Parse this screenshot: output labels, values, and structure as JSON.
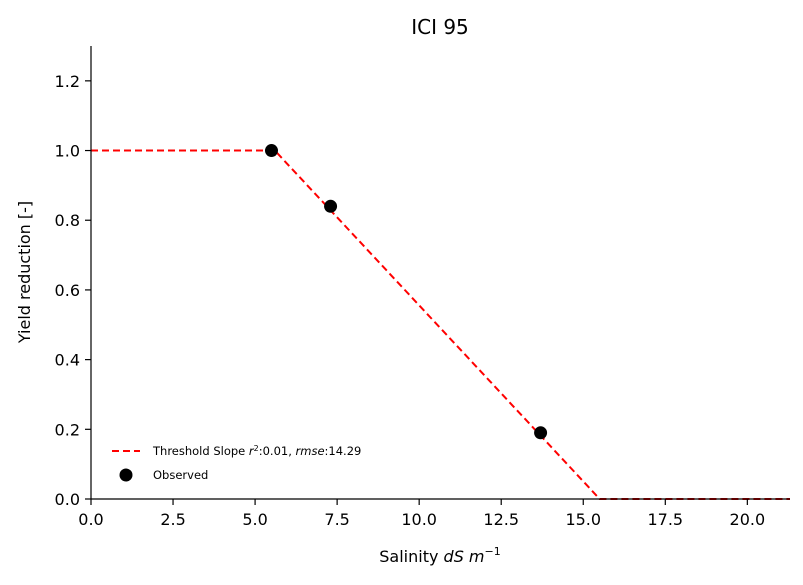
{
  "chart_data": {
    "type": "line",
    "title": "ICI 95",
    "xlabel": {
      "prefix": "Salinity ",
      "unit": "dS m",
      "exponent": "−1"
    },
    "ylabel": "Yield reduction [-]",
    "xlim": [
      0,
      21.3
    ],
    "ylim": [
      0,
      1.3
    ],
    "xticks": [
      0.0,
      2.5,
      5.0,
      7.5,
      10.0,
      12.5,
      15.0,
      17.5,
      20.0
    ],
    "xtick_labels": [
      "0.0",
      "2.5",
      "5.0",
      "7.5",
      "10.0",
      "12.5",
      "15.0",
      "17.5",
      "20.0"
    ],
    "yticks": [
      0.0,
      0.2,
      0.4,
      0.6,
      0.8,
      1.0,
      1.2
    ],
    "ytick_labels": [
      "0.0",
      "0.2",
      "0.4",
      "0.6",
      "0.8",
      "1.0",
      "1.2"
    ],
    "grid": false,
    "legend_position": "lower-left",
    "series": [
      {
        "name": "Threshold Slope r²:0.01, rmse:14.29",
        "kind": "line",
        "style": "dashed",
        "color": "#ff0000",
        "x": [
          0.0,
          5.6,
          15.5,
          21.3
        ],
        "y": [
          1.0,
          1.0,
          0.0,
          0.0
        ]
      },
      {
        "name": "Observed",
        "kind": "scatter",
        "color": "#000000",
        "x": [
          5.5,
          7.3,
          13.7
        ],
        "y": [
          1.0,
          0.84,
          0.19
        ]
      }
    ],
    "legend": [
      {
        "text": "Threshold Slope r²:0.01, rmse:14.29"
      },
      {
        "text": "Observed"
      }
    ]
  }
}
